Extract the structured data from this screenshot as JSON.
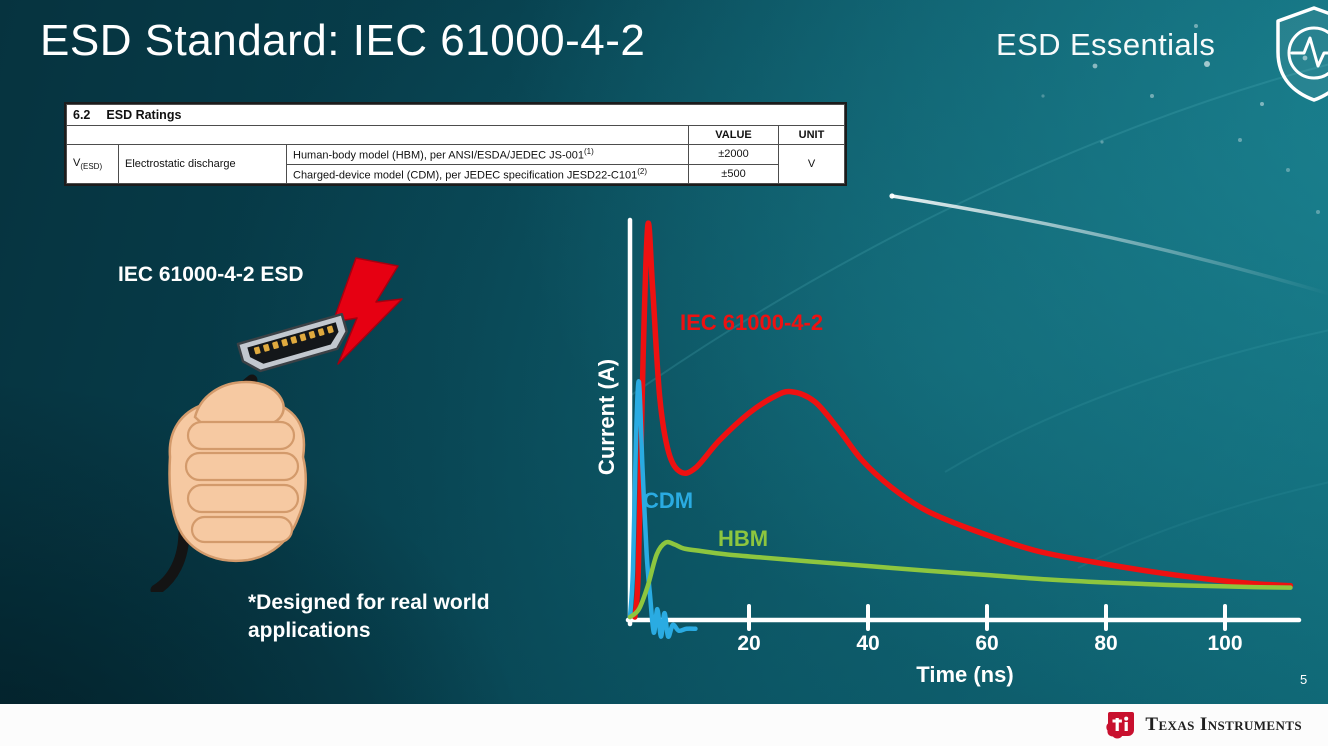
{
  "slide": {
    "title": "ESD Standard: IEC 61000-4-2",
    "brand": "ESD Essentials",
    "illustration_label": "IEC 61000-4-2 ESD",
    "footnote": "*Designed for real world\napplications",
    "page_number": "5"
  },
  "ratings_table": {
    "section": "6.2",
    "section_title": "ESD Ratings",
    "col_value": "VALUE",
    "col_unit": "UNIT",
    "row_symbol_base": "V",
    "row_symbol_sub": "(ESD)",
    "row_param": "Electrostatic discharge",
    "rows": [
      {
        "desc": "Human-body model (HBM), per ANSI/ESDA/JEDEC JS-001",
        "sup": "(1)",
        "value": "±2000"
      },
      {
        "desc": "Charged-device model (CDM), per JEDEC specification JESD22-C101",
        "sup": "(2)",
        "value": "±500"
      }
    ],
    "unit": "V"
  },
  "footer": {
    "brand": "Texas Instruments"
  },
  "chart_data": {
    "type": "line",
    "title": "",
    "xlabel": "Time (ns)",
    "ylabel": "Current (A)",
    "x_ticks": [
      20,
      40,
      60,
      80,
      100
    ],
    "xlim": [
      0,
      112
    ],
    "ylim_note": "relative current amplitude, unlabeled axis",
    "grid": false,
    "legend_position": "inline-labels",
    "series": [
      {
        "name": "IEC 61000-4-2",
        "color": "#ee1111",
        "width": 5.5,
        "points": [
          [
            0.8,
            0.0
          ],
          [
            1.4,
            0.12
          ],
          [
            2.2,
            0.66
          ],
          [
            3,
            1.0
          ],
          [
            3.8,
            0.84
          ],
          [
            5,
            0.56
          ],
          [
            6.5,
            0.42
          ],
          [
            8.5,
            0.37
          ],
          [
            11,
            0.38
          ],
          [
            15,
            0.45
          ],
          [
            20,
            0.52
          ],
          [
            24,
            0.56
          ],
          [
            27,
            0.575
          ],
          [
            31,
            0.55
          ],
          [
            35,
            0.48
          ],
          [
            39,
            0.4
          ],
          [
            44,
            0.33
          ],
          [
            50,
            0.27
          ],
          [
            58,
            0.22
          ],
          [
            68,
            0.17
          ],
          [
            78,
            0.14
          ],
          [
            88,
            0.115
          ],
          [
            98,
            0.095
          ],
          [
            105,
            0.085
          ],
          [
            111,
            0.08
          ]
        ]
      },
      {
        "name": "CDM",
        "color": "#2aabe2",
        "width": 4.5,
        "points": [
          [
            0,
            0.0
          ],
          [
            0.5,
            0.12
          ],
          [
            1.0,
            0.45
          ],
          [
            1.5,
            0.6
          ],
          [
            2.1,
            0.38
          ],
          [
            2.8,
            0.16
          ],
          [
            3.4,
            0.05
          ],
          [
            4.0,
            -0.04
          ],
          [
            4.6,
            0.02
          ],
          [
            5.2,
            -0.05
          ],
          [
            5.8,
            0.01
          ],
          [
            6.4,
            -0.05
          ],
          [
            7.2,
            -0.02
          ],
          [
            8.2,
            -0.035
          ],
          [
            9.5,
            -0.03
          ],
          [
            11,
            -0.03
          ]
        ]
      },
      {
        "name": "HBM",
        "color": "#8dc63f",
        "width": 4.5,
        "points": [
          [
            0,
            0.0
          ],
          [
            1.5,
            0.02
          ],
          [
            3,
            0.08
          ],
          [
            4.5,
            0.16
          ],
          [
            6,
            0.19
          ],
          [
            7.5,
            0.185
          ],
          [
            9,
            0.175
          ],
          [
            12,
            0.168
          ],
          [
            16,
            0.16
          ],
          [
            22,
            0.152
          ],
          [
            30,
            0.142
          ],
          [
            40,
            0.13
          ],
          [
            50,
            0.118
          ],
          [
            60,
            0.107
          ],
          [
            70,
            0.096
          ],
          [
            80,
            0.088
          ],
          [
            90,
            0.082
          ],
          [
            100,
            0.078
          ],
          [
            106,
            0.076
          ],
          [
            111,
            0.075
          ]
        ]
      }
    ]
  }
}
